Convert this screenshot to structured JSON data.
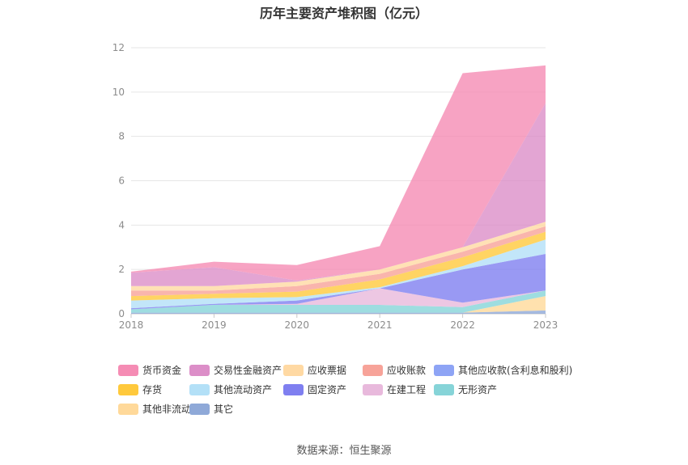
{
  "title": "历年主要资产堆积图（亿元）",
  "source": "数据来源：恒生聚源",
  "chart_data": {
    "type": "area",
    "stacked": true,
    "x": [
      "2018",
      "2019",
      "2020",
      "2021",
      "2022",
      "2023"
    ],
    "ylim": [
      0,
      12
    ],
    "yticks": [
      0,
      2,
      4,
      6,
      8,
      10,
      12
    ],
    "grid": true,
    "legend_position": "bottom",
    "series": [
      {
        "name": "其它",
        "color": "#8fa9d8",
        "values": [
          0.05,
          0.05,
          0.05,
          0.05,
          0.05,
          0.15
        ]
      },
      {
        "name": "其他非流动资产",
        "color": "#ffd99a",
        "values": [
          0.0,
          0.0,
          0.0,
          0.0,
          0.0,
          0.65
        ]
      },
      {
        "name": "无形资产",
        "color": "#86d4d8",
        "values": [
          0.15,
          0.35,
          0.35,
          0.35,
          0.25,
          0.25
        ]
      },
      {
        "name": "在建工程",
        "color": "#e8b9dc",
        "values": [
          0.0,
          0.0,
          0.05,
          0.75,
          0.2,
          0.0
        ]
      },
      {
        "name": "固定资产",
        "color": "#7f7ff0",
        "values": [
          0.05,
          0.05,
          0.15,
          0.0,
          1.5,
          1.65
        ]
      },
      {
        "name": "其他流动资产",
        "color": "#b3e0f7",
        "values": [
          0.35,
          0.25,
          0.15,
          0.05,
          0.15,
          0.65
        ]
      },
      {
        "name": "存货",
        "color": "#ffc93c",
        "values": [
          0.2,
          0.2,
          0.25,
          0.35,
          0.4,
          0.35
        ]
      },
      {
        "name": "其他应收款(含利息和股利)",
        "color": "#8ea4f5",
        "values": [
          0.0,
          0.0,
          0.0,
          0.0,
          0.0,
          0.0
        ]
      },
      {
        "name": "应收账款",
        "color": "#f7a399",
        "values": [
          0.25,
          0.15,
          0.25,
          0.25,
          0.25,
          0.25
        ]
      },
      {
        "name": "应收票据",
        "color": "#ffd9a3",
        "values": [
          0.2,
          0.2,
          0.2,
          0.2,
          0.2,
          0.2
        ]
      },
      {
        "name": "交易性金融资产",
        "color": "#dc8ec8",
        "values": [
          0.6,
          0.85,
          0.05,
          0.0,
          0.0,
          5.35
        ]
      },
      {
        "name": "货币资金",
        "color": "#f58cb4",
        "values": [
          0.05,
          0.25,
          0.7,
          1.05,
          7.85,
          1.7
        ]
      }
    ]
  },
  "legend": {
    "items": [
      {
        "name": "货币资金",
        "color": "#f58cb4"
      },
      {
        "name": "交易性金融资产",
        "color": "#dc8ec8"
      },
      {
        "name": "应收票据",
        "color": "#ffd9a3"
      },
      {
        "name": "应收账款",
        "color": "#f7a399"
      },
      {
        "name": "其他应收款(含利息和股利)",
        "color": "#8ea4f5"
      },
      {
        "name": "存货",
        "color": "#ffc93c"
      },
      {
        "name": "其他流动资产",
        "color": "#b3e0f7"
      },
      {
        "name": "固定资产",
        "color": "#7f7ff0"
      },
      {
        "name": "在建工程",
        "color": "#e8b9dc"
      },
      {
        "name": "无形资产",
        "color": "#86d4d8"
      },
      {
        "name": "其他非流动资产",
        "color": "#ffd99a"
      },
      {
        "name": "其它",
        "color": "#8fa9d8"
      }
    ]
  }
}
